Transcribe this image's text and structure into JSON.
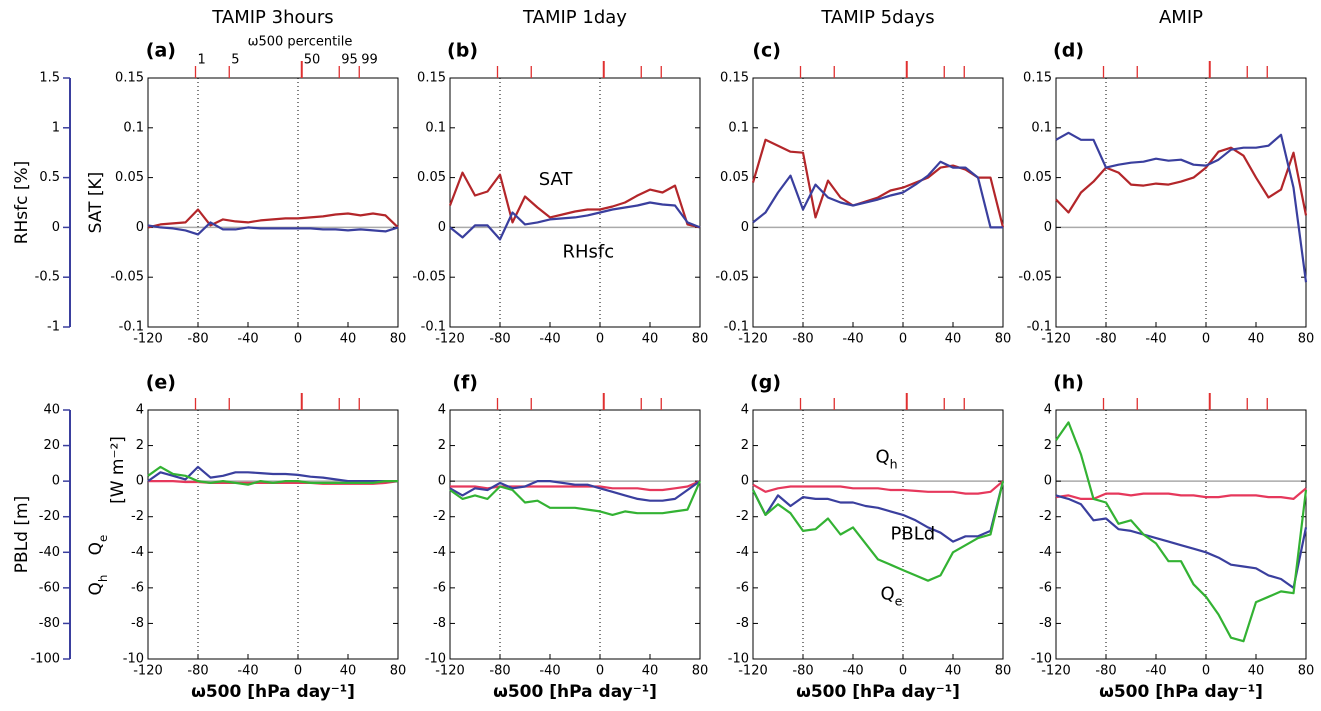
{
  "percentile": {
    "title": "ω500 percentile",
    "ticks": [
      {
        "value": -82,
        "label": "1"
      },
      {
        "value": -55,
        "label": "5"
      },
      {
        "value": 3,
        "label": "50"
      },
      {
        "value": 33,
        "label": "95"
      },
      {
        "value": 49,
        "label": "99"
      }
    ]
  },
  "chart_data": [
    {
      "type": "line",
      "title": "TAMIP 3hours",
      "label": "(a)",
      "ylabel": "SAT [K]",
      "y2label": "RHsfc [%]",
      "x": [
        -120,
        -110,
        -100,
        -90,
        -80,
        -70,
        -60,
        -50,
        -40,
        -30,
        -20,
        -10,
        0,
        10,
        20,
        30,
        40,
        50,
        60,
        70,
        80
      ],
      "xlim": [
        -120,
        80
      ],
      "xticks": [
        -120,
        -80,
        -40,
        0,
        40,
        80
      ],
      "ylim": [
        -0.1,
        0.15
      ],
      "yticks": [
        -0.1,
        -0.05,
        0,
        0.05,
        0.1,
        0.15
      ],
      "y2lim": [
        -1,
        1.5
      ],
      "y2ticks": [
        -1,
        -0.5,
        0,
        0.5,
        1,
        1.5
      ],
      "grid_x": [
        -80,
        0
      ],
      "zero_line": true,
      "series": [
        {
          "name": "SAT",
          "color": "#b3262a",
          "values": [
            0,
            0.003,
            0.004,
            0.005,
            0.018,
            0.002,
            0.008,
            0.006,
            0.005,
            0.007,
            0.008,
            0.009,
            0.009,
            0.01,
            0.011,
            0.013,
            0.014,
            0.012,
            0.014,
            0.012,
            0
          ]
        },
        {
          "name": "RHsfc",
          "color": "#3a3f9e",
          "axis": "y2",
          "values": [
            0.02,
            0,
            -0.01,
            -0.03,
            -0.07,
            0.05,
            -0.02,
            -0.02,
            0,
            -0.01,
            -0.01,
            -0.01,
            -0.01,
            -0.01,
            -0.02,
            -0.02,
            -0.03,
            -0.02,
            -0.03,
            -0.04,
            0
          ]
        }
      ]
    },
    {
      "type": "line",
      "title": "TAMIP 1day",
      "label": "(b)",
      "series_labels": true,
      "x": [
        -120,
        -110,
        -100,
        -90,
        -80,
        -70,
        -60,
        -50,
        -40,
        -30,
        -20,
        -10,
        0,
        10,
        20,
        30,
        40,
        50,
        60,
        70,
        80
      ],
      "xlim": [
        -120,
        80
      ],
      "xticks": [
        -120,
        -80,
        -40,
        0,
        40,
        80
      ],
      "ylim": [
        -0.1,
        0.15
      ],
      "yticks": [
        -0.1,
        -0.05,
        0,
        0.05,
        0.1,
        0.15
      ],
      "y2lim": [
        -1,
        1.5
      ],
      "grid_x": [
        -80,
        0
      ],
      "zero_line": true,
      "series": [
        {
          "name": "SAT",
          "color": "#b3262a",
          "values": [
            0.022,
            0.055,
            0.032,
            0.036,
            0.053,
            0.005,
            0.031,
            0.02,
            0.01,
            0.013,
            0.016,
            0.018,
            0.018,
            0.021,
            0.025,
            0.032,
            0.038,
            0.035,
            0.042,
            0.003,
            0
          ]
        },
        {
          "name": "RHsfc",
          "color": "#3a3f9e",
          "axis": "y2",
          "values": [
            0,
            -0.1,
            0.02,
            0.02,
            -0.12,
            0.15,
            0.03,
            0.05,
            0.08,
            0.09,
            0.1,
            0.12,
            0.15,
            0.18,
            0.2,
            0.22,
            0.25,
            0.23,
            0.22,
            0.05,
            0
          ]
        }
      ]
    },
    {
      "type": "line",
      "title": "TAMIP 5days",
      "label": "(c)",
      "x": [
        -120,
        -110,
        -100,
        -90,
        -80,
        -70,
        -60,
        -50,
        -40,
        -30,
        -20,
        -10,
        0,
        10,
        20,
        30,
        40,
        50,
        60,
        70,
        80
      ],
      "xlim": [
        -120,
        80
      ],
      "xticks": [
        -120,
        -80,
        -40,
        0,
        40,
        80
      ],
      "ylim": [
        -0.1,
        0.15
      ],
      "yticks": [
        -0.1,
        -0.05,
        0,
        0.05,
        0.1,
        0.15
      ],
      "y2lim": [
        -1,
        1.5
      ],
      "grid_x": [
        -80,
        0
      ],
      "zero_line": true,
      "series": [
        {
          "name": "SAT",
          "color": "#b3262a",
          "values": [
            0.045,
            0.088,
            0.082,
            0.076,
            0.075,
            0.01,
            0.047,
            0.03,
            0.022,
            0.026,
            0.03,
            0.037,
            0.04,
            0.045,
            0.05,
            0.06,
            0.062,
            0.058,
            0.05,
            0.05,
            0
          ]
        },
        {
          "name": "RHsfc",
          "color": "#3a3f9e",
          "axis": "y2",
          "values": [
            0.05,
            0.15,
            0.35,
            0.52,
            0.18,
            0.43,
            0.3,
            0.25,
            0.22,
            0.25,
            0.28,
            0.32,
            0.35,
            0.43,
            0.52,
            0.66,
            0.6,
            0.6,
            0.5,
            0,
            0
          ]
        }
      ]
    },
    {
      "type": "line",
      "title": "AMIP",
      "label": "(d)",
      "x": [
        -120,
        -110,
        -100,
        -90,
        -80,
        -70,
        -60,
        -50,
        -40,
        -30,
        -20,
        -10,
        0,
        10,
        20,
        30,
        40,
        50,
        60,
        70,
        80
      ],
      "xlim": [
        -120,
        80
      ],
      "xticks": [
        -120,
        -80,
        -40,
        0,
        40,
        80
      ],
      "ylim": [
        -0.1,
        0.15
      ],
      "yticks": [
        -0.1,
        -0.05,
        0,
        0.05,
        0.1,
        0.15
      ],
      "y2lim": [
        -1,
        1.5
      ],
      "grid_x": [
        -80,
        0
      ],
      "zero_line": true,
      "series": [
        {
          "name": "SAT",
          "color": "#b3262a",
          "values": [
            0.028,
            0.015,
            0.035,
            0.046,
            0.06,
            0.055,
            0.043,
            0.042,
            0.044,
            0.043,
            0.046,
            0.05,
            0.06,
            0.076,
            0.08,
            0.072,
            0.05,
            0.03,
            0.038,
            0.075,
            0.012
          ]
        },
        {
          "name": "RHsfc",
          "color": "#3a3f9e",
          "axis": "y2",
          "values": [
            0.88,
            0.95,
            0.88,
            0.88,
            0.6,
            0.63,
            0.65,
            0.66,
            0.69,
            0.67,
            0.68,
            0.63,
            0.62,
            0.68,
            0.78,
            0.8,
            0.8,
            0.82,
            0.93,
            0.4,
            -0.55
          ]
        }
      ]
    },
    {
      "type": "line",
      "label": "(e)",
      "ylabel": "[W m⁻²]",
      "y2label": "PBLd [m]",
      "xlabel": "ω500 [hPa day⁻¹]",
      "x": [
        -120,
        -110,
        -100,
        -90,
        -80,
        -70,
        -60,
        -50,
        -40,
        -30,
        -20,
        -10,
        0,
        10,
        20,
        30,
        40,
        50,
        60,
        70,
        80
      ],
      "xlim": [
        -120,
        80
      ],
      "xticks": [
        -120,
        -80,
        -40,
        0,
        40,
        80
      ],
      "ylim": [
        -10,
        4
      ],
      "yticks": [
        -10,
        -8,
        -6,
        -4,
        -2,
        0,
        2,
        4
      ],
      "y2lim": [
        -100,
        40
      ],
      "y2ticks": [
        -100,
        -80,
        -60,
        -40,
        -20,
        0,
        20,
        40
      ],
      "grid_x": [
        -80,
        0
      ],
      "zero_line": true,
      "series": [
        {
          "name": "Q",
          "sub": "h",
          "color": "#e6385c",
          "values": [
            0,
            0,
            0,
            -0.05,
            -0.05,
            -0.1,
            -0.1,
            -0.1,
            -0.1,
            -0.1,
            -0.1,
            -0.1,
            -0.1,
            -0.1,
            -0.15,
            -0.15,
            -0.15,
            -0.15,
            -0.15,
            -0.1,
            0
          ]
        },
        {
          "name": "PBLd",
          "color": "#3a3f9e",
          "axis": "y2",
          "values": [
            0,
            5,
            3,
            1,
            8,
            2,
            3,
            5,
            5,
            4.5,
            4,
            4,
            3.5,
            2.5,
            2,
            1,
            0,
            0,
            0,
            0,
            0
          ]
        },
        {
          "name": "Q",
          "sub": "e",
          "color": "#33b233",
          "values": [
            0.3,
            0.8,
            0.4,
            0.3,
            0,
            -0.1,
            0,
            -0.1,
            -0.2,
            0,
            -0.1,
            0,
            0,
            -0.1,
            -0.1,
            -0.1,
            -0.1,
            -0.1,
            -0.1,
            0,
            0
          ]
        }
      ]
    },
    {
      "type": "line",
      "label": "(f)",
      "xlabel": "ω500 [hPa day⁻¹]",
      "x": [
        -120,
        -110,
        -100,
        -90,
        -80,
        -70,
        -60,
        -50,
        -40,
        -30,
        -20,
        -10,
        0,
        10,
        20,
        30,
        40,
        50,
        60,
        70,
        80
      ],
      "xlim": [
        -120,
        80
      ],
      "xticks": [
        -120,
        -80,
        -40,
        0,
        40,
        80
      ],
      "ylim": [
        -10,
        4
      ],
      "yticks": [
        -10,
        -8,
        -6,
        -4,
        -2,
        0,
        2,
        4
      ],
      "y2lim": [
        -100,
        40
      ],
      "grid_x": [
        -80,
        0
      ],
      "zero_line": true,
      "series": [
        {
          "name": "Q",
          "sub": "h",
          "color": "#e6385c",
          "values": [
            -0.3,
            -0.3,
            -0.3,
            -0.4,
            -0.3,
            -0.3,
            -0.3,
            -0.3,
            -0.3,
            -0.3,
            -0.3,
            -0.3,
            -0.3,
            -0.4,
            -0.4,
            -0.4,
            -0.5,
            -0.5,
            -0.4,
            -0.3,
            0
          ]
        },
        {
          "name": "PBLd",
          "color": "#3a3f9e",
          "axis": "y2",
          "values": [
            -4,
            -8,
            -4,
            -5,
            -1,
            -4,
            -3,
            0,
            0,
            -1,
            -2,
            -2,
            -4,
            -6,
            -8,
            -10,
            -11,
            -11,
            -10,
            -5,
            0
          ]
        },
        {
          "name": "Q",
          "sub": "e",
          "color": "#33b233",
          "values": [
            -0.5,
            -1,
            -0.8,
            -1,
            -0.3,
            -0.5,
            -1.2,
            -1.1,
            -1.5,
            -1.5,
            -1.5,
            -1.6,
            -1.7,
            -1.9,
            -1.7,
            -1.8,
            -1.8,
            -1.8,
            -1.7,
            -1.6,
            0
          ]
        }
      ]
    },
    {
      "type": "line",
      "label": "(g)",
      "xlabel": "ω500 [hPa day⁻¹]",
      "series_labels": true,
      "x": [
        -120,
        -110,
        -100,
        -90,
        -80,
        -70,
        -60,
        -50,
        -40,
        -30,
        -20,
        -10,
        0,
        10,
        20,
        30,
        40,
        50,
        60,
        70,
        80
      ],
      "xlim": [
        -120,
        80
      ],
      "xticks": [
        -120,
        -80,
        -40,
        0,
        40,
        80
      ],
      "ylim": [
        -10,
        4
      ],
      "yticks": [
        -10,
        -8,
        -6,
        -4,
        -2,
        0,
        2,
        4
      ],
      "y2lim": [
        -100,
        40
      ],
      "grid_x": [
        -80,
        0
      ],
      "zero_line": true,
      "series": [
        {
          "name": "Q",
          "sub": "h",
          "color": "#e6385c",
          "values": [
            -0.2,
            -0.6,
            -0.4,
            -0.3,
            -0.3,
            -0.3,
            -0.3,
            -0.3,
            -0.4,
            -0.4,
            -0.4,
            -0.5,
            -0.5,
            -0.55,
            -0.6,
            -0.6,
            -0.6,
            -0.7,
            -0.7,
            -0.6,
            0
          ]
        },
        {
          "name": "PBLd",
          "color": "#3a3f9e",
          "axis": "y2",
          "values": [
            -5,
            -19,
            -8,
            -14,
            -9,
            -10,
            -10,
            -12,
            -12,
            -14,
            -15,
            -17,
            -19,
            -22,
            -26,
            -29,
            -34,
            -31,
            -31,
            -28,
            0
          ]
        },
        {
          "name": "Q",
          "sub": "e",
          "color": "#33b233",
          "values": [
            -0.5,
            -1.9,
            -1.3,
            -1.8,
            -2.8,
            -2.7,
            -2.1,
            -3,
            -2.6,
            -3.5,
            -4.4,
            -4.7,
            -5,
            -5.3,
            -5.6,
            -5.3,
            -4,
            -3.6,
            -3.2,
            -3,
            0
          ]
        }
      ]
    },
    {
      "type": "line",
      "label": "(h)",
      "xlabel": "ω500 [hPa day⁻¹]",
      "x": [
        -120,
        -110,
        -100,
        -90,
        -80,
        -70,
        -60,
        -50,
        -40,
        -30,
        -20,
        -10,
        0,
        10,
        20,
        30,
        40,
        50,
        60,
        70,
        80
      ],
      "xlim": [
        -120,
        80
      ],
      "xticks": [
        -120,
        -80,
        -40,
        0,
        40,
        80
      ],
      "ylim": [
        -10,
        4
      ],
      "yticks": [
        -10,
        -8,
        -6,
        -4,
        -2,
        0,
        2,
        4
      ],
      "y2lim": [
        -100,
        40
      ],
      "grid_x": [
        -80,
        0
      ],
      "zero_line": true,
      "series": [
        {
          "name": "Q",
          "sub": "h",
          "color": "#e6385c",
          "values": [
            -0.9,
            -0.8,
            -1,
            -1,
            -0.7,
            -0.7,
            -0.8,
            -0.7,
            -0.7,
            -0.7,
            -0.8,
            -0.8,
            -0.9,
            -0.9,
            -0.8,
            -0.8,
            -0.8,
            -0.9,
            -0.9,
            -1,
            -0.4
          ]
        },
        {
          "name": "PBLd",
          "color": "#3a3f9e",
          "axis": "y2",
          "values": [
            -8,
            -10,
            -13,
            -22,
            -21,
            -27,
            -28,
            -30,
            -32,
            -34,
            -36,
            -38,
            -40,
            -43,
            -47,
            -48,
            -49,
            -53,
            -55,
            -60,
            -26
          ]
        },
        {
          "name": "Q",
          "sub": "e",
          "color": "#33b233",
          "values": [
            2.3,
            3.3,
            1.5,
            -1,
            -1.2,
            -2.4,
            -2.2,
            -3,
            -3.5,
            -4.5,
            -4.5,
            -5.8,
            -6.5,
            -7.5,
            -8.8,
            -9,
            -6.8,
            -6.5,
            -6.2,
            -6.3,
            -0.5
          ]
        }
      ]
    }
  ]
}
